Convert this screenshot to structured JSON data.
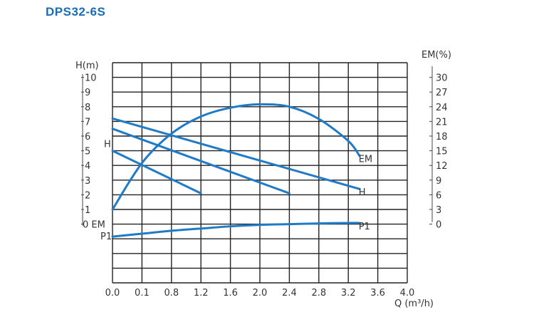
{
  "title": "DPS32-6S",
  "chart_data": {
    "type": "line",
    "title": "DPS32-6S",
    "xlabel": "Q (m³/h)",
    "ylabel_left": "H(m)",
    "ylabel_right": "EM(%)",
    "xlim": [
      0,
      4.0
    ],
    "ylim_left": [
      0,
      10
    ],
    "ylim_right": [
      0,
      30
    ],
    "x_ticks": [
      "0.0",
      "0.1",
      "0.8",
      "1.2",
      "1.6",
      "2.0",
      "2.4",
      "2.8",
      "3.2",
      "3.6",
      "4.0"
    ],
    "y_left_ticks": [
      "0",
      "1",
      "2",
      "3",
      "4",
      "5",
      "6",
      "7",
      "8",
      "9",
      "10"
    ],
    "y_right_ticks": [
      "0",
      "3",
      "6",
      "9",
      "12",
      "15",
      "18",
      "21",
      "24",
      "27",
      "30"
    ],
    "left_axis_markers": {
      "H": "H",
      "EM": "EM",
      "P1": "P1"
    },
    "grid": true,
    "series": [
      {
        "name": "H",
        "axis": "H",
        "x": [
          0.0,
          1.2
        ],
        "y": [
          5.0,
          2.1
        ]
      },
      {
        "name": "H",
        "axis": "H",
        "x": [
          0.0,
          2.4
        ],
        "y": [
          6.5,
          2.1
        ]
      },
      {
        "name": "H",
        "axis": "H",
        "x": [
          0.0,
          3.35
        ],
        "y": [
          7.2,
          2.4
        ]
      },
      {
        "name": "EM",
        "axis": "EM",
        "x": [
          0.0,
          0.4,
          0.8,
          1.2,
          1.6,
          2.0,
          2.4,
          2.8,
          3.2,
          3.35
        ],
        "y": [
          3.0,
          12.5,
          18.5,
          22.0,
          23.8,
          24.5,
          24.0,
          21.5,
          17.0,
          14.0
        ]
      },
      {
        "name": "P1",
        "axis": "H",
        "x": [
          0.0,
          0.4,
          0.8,
          1.2,
          1.6,
          2.0,
          2.4,
          2.8,
          3.2,
          3.35
        ],
        "y": [
          -0.85,
          -0.65,
          -0.45,
          -0.3,
          -0.15,
          -0.05,
          0.0,
          0.05,
          0.08,
          0.08
        ]
      }
    ]
  },
  "colors": {
    "curve": "#1f7bc7",
    "title": "#1a6db5",
    "grid": "#222222"
  }
}
